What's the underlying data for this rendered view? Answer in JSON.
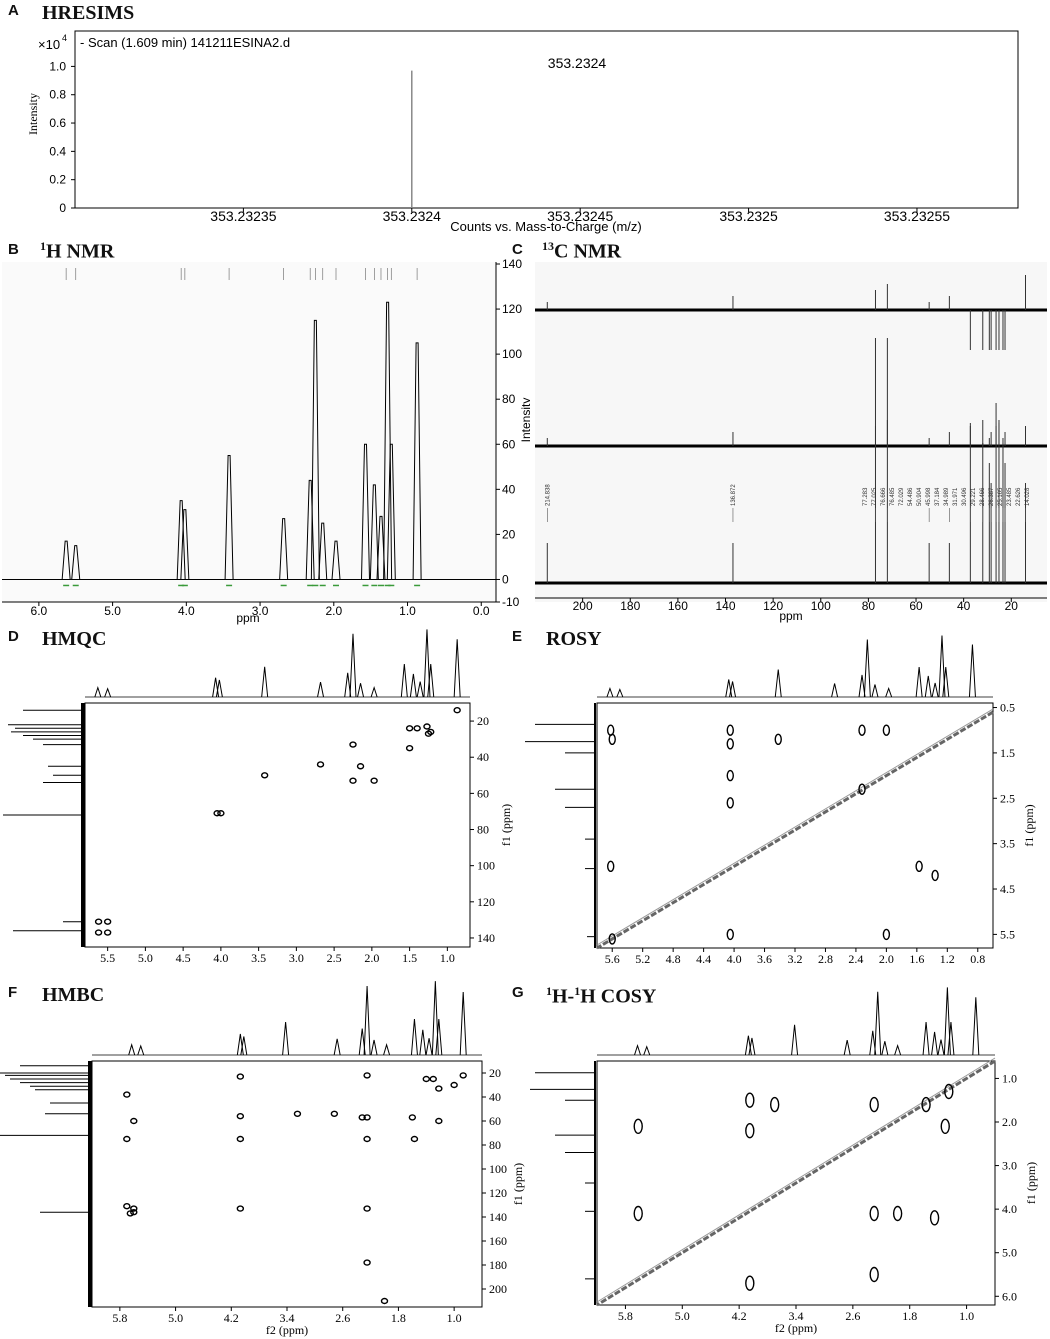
{
  "panels": {
    "A": {
      "letter": "A",
      "title": "HRESIMS",
      "legend": "- Scan (1.609 min) 141211ESINA2.d",
      "exponent_base": "×10",
      "exponent_power": "4",
      "ylabel": "Intensity",
      "xlabel": "Counts vs. Mass-to-Charge (m/z)",
      "peak_label": "353.2324",
      "x_ticks": [
        "353.23235",
        "353.2324",
        "353.23245",
        "353.2325",
        "353.23255"
      ],
      "y_ticks": [
        "0",
        "0.2",
        "0.4",
        "0.6",
        "0.8",
        "1.0"
      ]
    },
    "B": {
      "letter": "B",
      "title_sup": "1",
      "title_rest": "H NMR",
      "xlabel": "ppm",
      "x_ticks": [
        "6.0",
        "5.0",
        "4.0",
        "3.0",
        "2.0",
        "1.0",
        "0.0"
      ],
      "y_ticks": [
        "-10",
        "0",
        "20",
        "40",
        "60",
        "80",
        "100",
        "120",
        "140"
      ],
      "ylabel": "Intensity"
    },
    "C": {
      "letter": "C",
      "title_sup": "13",
      "title_rest": "C NMR",
      "xlabel": "ppm",
      "x_ticks": [
        "200",
        "180",
        "160",
        "140",
        "120",
        "100",
        "80",
        "60",
        "40",
        "20"
      ],
      "peak_labels": [
        "214.838",
        "136.872",
        "77.283",
        "77.025",
        "76.666",
        "76.485",
        "72.029",
        "54.486",
        "50.904",
        "45.998",
        "37.184",
        "34.989",
        "31.971",
        "30.496",
        "29.221",
        "28.466",
        "26.387",
        "25.165",
        "23.485",
        "22.626",
        "14.028"
      ]
    },
    "D": {
      "letter": "D",
      "title": "HMQC",
      "xlabel": "f2 (ppm)",
      "ylabel": "f1 (ppm)",
      "x_ticks": [
        "5.5",
        "5.0",
        "4.5",
        "4.0",
        "3.5",
        "3.0",
        "2.5",
        "2.0",
        "1.5",
        "1.0"
      ],
      "y_ticks": [
        "20",
        "40",
        "60",
        "80",
        "100",
        "120",
        "140"
      ]
    },
    "E": {
      "letter": "E",
      "title": "ROSY",
      "xlabel": "f2 (ppm)",
      "ylabel": "f1 (ppm)",
      "x_ticks": [
        "5.6",
        "5.2",
        "4.8",
        "4.4",
        "4.0",
        "3.6",
        "3.2",
        "2.8",
        "2.4",
        "2.0",
        "1.6",
        "1.2",
        "0.8"
      ],
      "y_ticks": [
        "0.5",
        "1.5",
        "2.5",
        "3.5",
        "4.5",
        "5.5"
      ]
    },
    "F": {
      "letter": "F",
      "title": "HMBC",
      "xlabel": "f2 (ppm)",
      "ylabel": "f1 (ppm)",
      "x_ticks": [
        "5.8",
        "5.0",
        "4.2",
        "3.4",
        "2.6",
        "1.8",
        "1.0"
      ],
      "y_ticks": [
        "20",
        "40",
        "60",
        "80",
        "100",
        "120",
        "140",
        "160",
        "180",
        "200"
      ]
    },
    "G": {
      "letter": "G",
      "title_sup1": "1",
      "title_mid": "H-",
      "title_sup2": "1",
      "title_rest": "H COSY",
      "xlabel": "f2 (ppm)",
      "ylabel": "f1 (ppm)",
      "x_ticks": [
        "5.8",
        "5.0",
        "4.2",
        "3.4",
        "2.6",
        "1.8",
        "1.0"
      ],
      "y_ticks": [
        "1.0",
        "2.0",
        "3.0",
        "4.0",
        "5.0",
        "6.0"
      ]
    }
  },
  "chart_data": [
    {
      "panel": "A",
      "type": "bar",
      "x": [
        353.2324
      ],
      "values": [
        0.97
      ],
      "xlim": [
        353.2323,
        353.23258
      ],
      "ylim": [
        0,
        1.25
      ],
      "xlabel": "Counts vs. Mass-to-Charge (m/z)",
      "ylabel": "Intensity"
    },
    {
      "panel": "B",
      "type": "line",
      "peaks_ppm": [
        5.63,
        5.5,
        4.07,
        4.02,
        3.42,
        2.68,
        2.32,
        2.25,
        2.15,
        1.97,
        1.57,
        1.45,
        1.36,
        1.27,
        1.22,
        0.87
      ],
      "peaks_height": [
        17,
        15,
        35,
        31,
        55,
        27,
        44,
        115,
        25,
        17,
        60,
        42,
        28,
        123,
        60,
        105
      ],
      "xlim": [
        6.5,
        -0.2
      ],
      "ylim": [
        -10,
        140
      ]
    },
    {
      "panel": "C",
      "type": "line",
      "peaks_ppm": [
        214.838,
        136.872,
        77.025,
        72.029,
        54.486,
        45.998,
        37.184,
        31.971,
        29.221,
        28.466,
        26.387,
        25.165,
        23.485,
        22.626,
        14.028
      ],
      "xlim": [
        220,
        5
      ]
    },
    {
      "panel": "D",
      "type": "scatter",
      "x": [
        5.62,
        5.5,
        5.62,
        5.5,
        4.05,
        4.0,
        3.42,
        2.68,
        2.25,
        2.15,
        2.25,
        1.97,
        1.5,
        1.5,
        1.4,
        1.27,
        1.25,
        1.22,
        0.87
      ],
      "y": [
        131,
        131,
        137,
        137,
        71,
        71,
        50,
        44,
        33,
        45,
        53,
        53,
        24,
        35,
        24,
        23,
        27,
        26,
        14
      ],
      "xlim": [
        5.8,
        0.7
      ],
      "ylim": [
        10,
        145
      ]
    },
    {
      "panel": "E",
      "type": "scatter",
      "x": [
        5.62,
        5.6,
        5.62,
        5.6,
        4.05,
        4.05,
        4.05,
        4.05,
        4.05,
        3.42,
        2.32,
        2.32,
        2.0,
        2.0,
        1.57,
        1.36
      ],
      "y": [
        1.0,
        1.2,
        4.0,
        5.6,
        1.0,
        1.3,
        2.0,
        2.6,
        5.5,
        1.2,
        1.0,
        2.3,
        1.0,
        5.5,
        4.0,
        4.2
      ],
      "xlim": [
        5.8,
        0.6
      ],
      "ylim": [
        0.4,
        5.8
      ]
    },
    {
      "panel": "F",
      "type": "scatter",
      "x": [
        5.7,
        5.6,
        5.7,
        5.6,
        5.7,
        5.6,
        5.65,
        4.07,
        4.07,
        4.07,
        4.07,
        3.25,
        2.72,
        2.32,
        2.25,
        2.25,
        2.25,
        2.25,
        2.25,
        2.0,
        1.6,
        1.57,
        1.4,
        1.3,
        1.22,
        1.22,
        1.0,
        0.87
      ],
      "y": [
        38,
        60,
        75,
        136,
        131,
        133,
        137,
        23,
        56,
        75,
        133,
        54,
        54,
        57,
        22,
        57,
        75,
        133,
        178,
        210,
        57,
        75,
        25,
        25,
        33,
        60,
        30,
        22
      ],
      "xlim": [
        6.2,
        0.6
      ],
      "ylim": [
        10,
        215
      ]
    },
    {
      "panel": "G",
      "type": "scatter",
      "x": [
        5.62,
        5.62,
        4.05,
        4.05,
        4.05,
        3.7,
        2.3,
        2.3,
        2.3,
        1.97,
        1.57,
        1.45,
        1.3,
        1.25
      ],
      "y": [
        2.1,
        4.1,
        1.5,
        2.2,
        5.7,
        1.6,
        1.6,
        4.1,
        5.5,
        4.1,
        1.6,
        4.2,
        2.1,
        1.3
      ],
      "xlim": [
        6.2,
        0.6
      ],
      "ylim": [
        0.6,
        6.2
      ]
    }
  ]
}
